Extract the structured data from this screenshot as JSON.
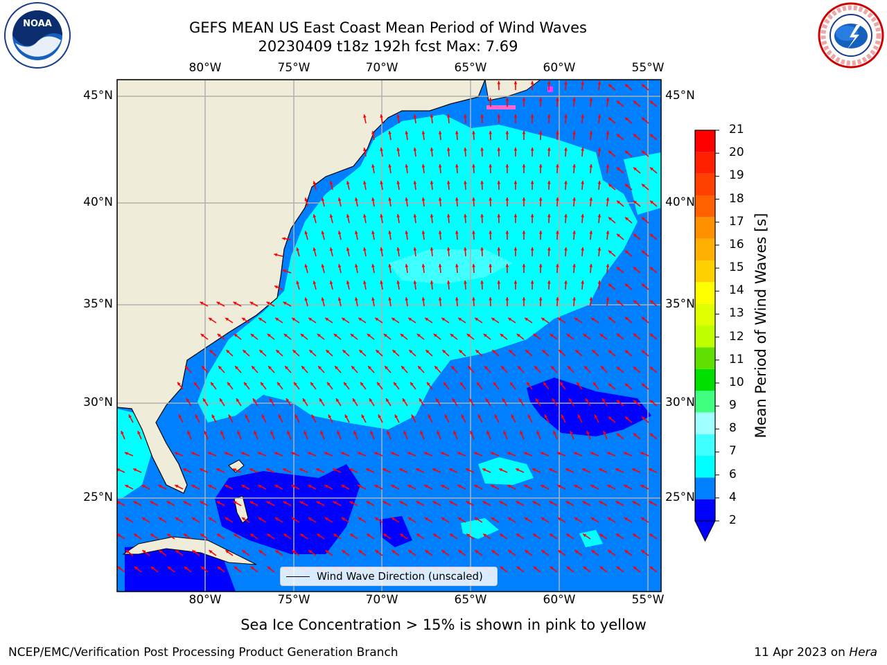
{
  "title_line1": "GEFS MEAN US East Coast Mean Period of Wind Waves",
  "title_line2": "20230409 t18z 192h fcst   Max: 7.69",
  "lon_labels": [
    "80°W",
    "75°W",
    "70°W",
    "65°W",
    "60°W",
    "55°W"
  ],
  "lat_labels": [
    "45°N",
    "40°N",
    "35°N",
    "30°N",
    "25°N"
  ],
  "colorbar": {
    "label": "Mean Period of Wind Waves [s]",
    "ticks": [
      "21",
      "20",
      "19",
      "18",
      "17",
      "16",
      "15",
      "14",
      "13",
      "12",
      "11",
      "10",
      "9",
      "8",
      "7",
      "6",
      "4",
      "2"
    ],
    "colors": [
      "#0000ff",
      "#0080ff",
      "#00ffff",
      "#40ffff",
      "#a0ffff",
      "#40ff80",
      "#00e000",
      "#60e000",
      "#c0ff00",
      "#e0ff00",
      "#ffff00",
      "#ffd000",
      "#ffb000",
      "#ff9000",
      "#ff6000",
      "#ff4000",
      "#ff2000",
      "#ff0000"
    ]
  },
  "legend_label": "Wind Wave Direction (unscaled)",
  "subtitle": "Sea Ice Concentration > 15% is shown in pink to yellow",
  "footer_left": "NCEP/EMC/Verification Post Processing Product Generation Branch",
  "footer_right_prefix": "11 Apr 2023 on ",
  "footer_right_host": "Hera",
  "logos": {
    "noaa_text": "NOAA",
    "nws_text": "NATIONAL WEATHER SERVICE"
  },
  "colors": {
    "land": "#efedd9",
    "ocean_deep": "#0080ff",
    "ocean_cyan": "#00ffff",
    "ocean_light": "#40ffff",
    "ocean_dark": "#0000ff",
    "arrow": "#ff0000",
    "grid": "#b0b0b0"
  }
}
